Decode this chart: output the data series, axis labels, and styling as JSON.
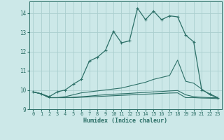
{
  "xlabel": "Humidex (Indice chaleur)",
  "bg_color": "#cce8e8",
  "line_color": "#2d7068",
  "grid_color": "#aacece",
  "xlim": [
    -0.5,
    23.5
  ],
  "ylim": [
    9,
    14.6
  ],
  "yticks": [
    9,
    10,
    11,
    12,
    13,
    14
  ],
  "xticks": [
    0,
    1,
    2,
    3,
    4,
    5,
    6,
    7,
    8,
    9,
    10,
    11,
    12,
    13,
    14,
    15,
    16,
    17,
    18,
    19,
    20,
    21,
    22,
    23
  ],
  "series": {
    "line1_x": [
      0,
      1,
      2,
      3,
      4,
      5,
      6,
      7,
      8,
      9,
      10,
      11,
      12,
      13,
      14,
      15,
      16,
      17,
      18,
      19,
      20,
      21,
      22,
      23
    ],
    "line1_y": [
      9.9,
      9.8,
      9.65,
      9.9,
      10.0,
      10.3,
      10.55,
      11.5,
      11.7,
      12.05,
      13.05,
      12.45,
      12.55,
      14.25,
      13.65,
      14.1,
      13.65,
      13.85,
      13.8,
      12.85,
      12.5,
      10.0,
      9.8,
      9.6
    ],
    "line2_x": [
      0,
      1,
      2,
      3,
      4,
      5,
      6,
      7,
      8,
      9,
      10,
      11,
      12,
      13,
      14,
      15,
      16,
      17,
      18,
      19,
      20,
      21,
      22,
      23
    ],
    "line2_y": [
      9.9,
      9.8,
      9.6,
      9.6,
      9.65,
      9.75,
      9.85,
      9.9,
      9.95,
      10.0,
      10.05,
      10.1,
      10.2,
      10.3,
      10.4,
      10.55,
      10.65,
      10.75,
      11.55,
      10.45,
      10.35,
      10.05,
      9.75,
      9.6
    ],
    "line3_x": [
      0,
      1,
      2,
      3,
      4,
      5,
      6,
      7,
      8,
      9,
      10,
      11,
      12,
      13,
      14,
      15,
      16,
      17,
      18,
      19,
      20,
      21,
      22,
      23
    ],
    "line3_y": [
      9.9,
      9.8,
      9.6,
      9.6,
      9.6,
      9.62,
      9.65,
      9.68,
      9.72,
      9.75,
      9.78,
      9.8,
      9.82,
      9.85,
      9.87,
      9.9,
      9.92,
      9.95,
      9.97,
      9.75,
      9.65,
      9.62,
      9.6,
      9.6
    ],
    "line4_x": [
      0,
      1,
      2,
      3,
      4,
      5,
      6,
      7,
      8,
      9,
      10,
      11,
      12,
      13,
      14,
      15,
      16,
      17,
      18,
      19,
      20,
      21,
      22,
      23
    ],
    "line4_y": [
      9.9,
      9.8,
      9.6,
      9.6,
      9.6,
      9.6,
      9.62,
      9.64,
      9.66,
      9.68,
      9.7,
      9.72,
      9.74,
      9.76,
      9.78,
      9.8,
      9.82,
      9.84,
      9.85,
      9.6,
      9.6,
      9.58,
      9.57,
      9.55
    ]
  }
}
